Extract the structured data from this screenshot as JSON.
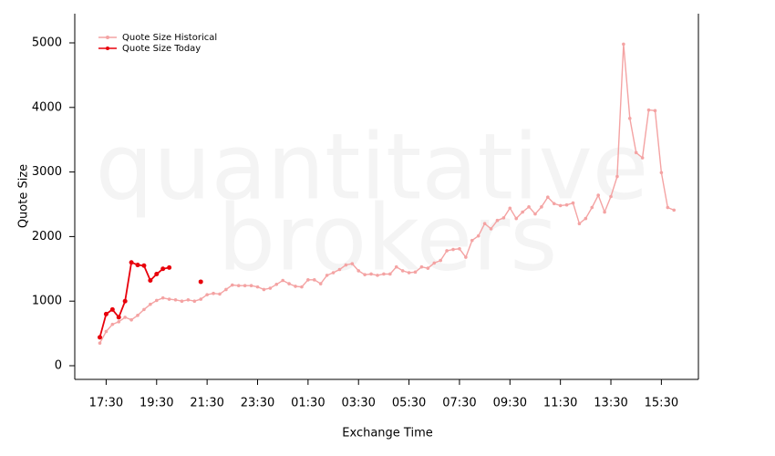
{
  "chart_data": {
    "type": "line",
    "watermark": [
      "quantitative",
      "brokers"
    ],
    "x_label": "Exchange Time",
    "y_label": "Quote Size",
    "categories": [
      null,
      "17:30",
      null,
      null,
      null,
      null,
      null,
      null,
      null,
      "19:30",
      null,
      null,
      null,
      null,
      null,
      null,
      null,
      "21:30",
      null,
      null,
      null,
      null,
      null,
      null,
      null,
      "23:30",
      null,
      null,
      null,
      null,
      null,
      null,
      null,
      "01:30",
      null,
      null,
      null,
      null,
      null,
      null,
      null,
      "03:30",
      null,
      null,
      null,
      null,
      null,
      null,
      null,
      "05:30",
      null,
      null,
      null,
      null,
      null,
      null,
      null,
      "07:30",
      null,
      null,
      null,
      null,
      null,
      null,
      null,
      "09:30",
      null,
      null,
      null,
      null,
      null,
      null,
      null,
      "11:30",
      null,
      null,
      null,
      null,
      null,
      null,
      null,
      "13:30",
      null,
      null,
      null,
      null,
      null,
      null,
      null,
      "15:30",
      null,
      null
    ],
    "series": [
      {
        "name": "Quote Size Historical",
        "color": "#f4a3a3",
        "values": [
          350,
          530,
          640,
          680,
          750,
          710,
          780,
          870,
          950,
          1010,
          1050,
          1030,
          1020,
          1000,
          1020,
          1000,
          1030,
          1100,
          1120,
          1110,
          1180,
          1250,
          1240,
          1240,
          1240,
          1220,
          1180,
          1200,
          1260,
          1320,
          1270,
          1230,
          1220,
          1330,
          1330,
          1270,
          1400,
          1440,
          1490,
          1560,
          1580,
          1470,
          1410,
          1420,
          1400,
          1420,
          1420,
          1530,
          1470,
          1440,
          1450,
          1530,
          1510,
          1590,
          1630,
          1780,
          1800,
          1810,
          1680,
          1940,
          2010,
          2200,
          2120,
          2250,
          2290,
          2440,
          2280,
          2380,
          2460,
          2350,
          2460,
          2610,
          2510,
          2480,
          2490,
          2520,
          2200,
          2280,
          2450,
          2640,
          2380,
          2620,
          2930,
          4980,
          3830,
          3300,
          3220,
          3960,
          3950,
          2990,
          2450,
          2410
        ]
      },
      {
        "name": "Quote Size Today",
        "color": "#e8000b",
        "values": [
          440,
          800,
          870,
          750,
          1000,
          1600,
          1560,
          1550,
          1320,
          1420,
          1500,
          1520,
          null,
          null,
          null,
          null,
          1300,
          null,
          null,
          null,
          null,
          null,
          null,
          null,
          null,
          null,
          null,
          null,
          null,
          null,
          null,
          null,
          null,
          null,
          null,
          null,
          null,
          null,
          null,
          null,
          null,
          null,
          null,
          null,
          null,
          null,
          null,
          null,
          null,
          null,
          null,
          null,
          null,
          null,
          null,
          null,
          null,
          null,
          null,
          null,
          null,
          null,
          null,
          null,
          null,
          null,
          null,
          null,
          null,
          null,
          null,
          null,
          null,
          null,
          null,
          null,
          null,
          null,
          null,
          null,
          null,
          null,
          null,
          null,
          null,
          null,
          null,
          null,
          null,
          null,
          null,
          null
        ]
      }
    ],
    "ylim": [
      -212,
      5452
    ],
    "yticks": [
      0,
      1000,
      2000,
      3000,
      4000,
      5000
    ],
    "legend": "top-left"
  }
}
